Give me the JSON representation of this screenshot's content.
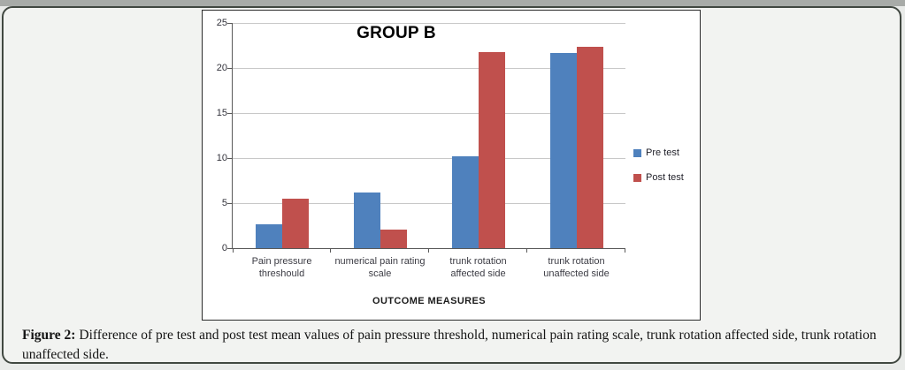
{
  "page": {
    "background": "#f2f3f1",
    "border_color": "#414841",
    "top_strip_color": "#a8aba8"
  },
  "caption": {
    "label": "Figure 2:",
    "text": "Difference of pre test and post test mean values of pain pressure threshold, numerical pain rating scale, trunk rotation affected side, trunk rotation unaffected side."
  },
  "chart_data": {
    "type": "bar",
    "title": "GROUP B",
    "xlabel": "OUTCOME MEASURES",
    "ylabel": "",
    "categories": [
      "Pain pressure threshould",
      "numerical pain rating scale",
      "trunk rotation affected side",
      "trunk rotation unaffected side"
    ],
    "category_lines": [
      [
        "Pain pressure",
        "threshould"
      ],
      [
        "numerical pain rating",
        "scale"
      ],
      [
        "trunk rotation",
        "affected side"
      ],
      [
        "trunk rotation",
        "unaffected side"
      ]
    ],
    "series": [
      {
        "name": "Pre test",
        "color": "#4f81bd",
        "values": [
          2.6,
          6.2,
          10.2,
          21.7
        ]
      },
      {
        "name": "Post test",
        "color": "#c0504d",
        "values": [
          5.5,
          2.1,
          21.8,
          22.4
        ]
      }
    ],
    "ylim": [
      0,
      25
    ],
    "yticks": [
      0,
      5,
      10,
      15,
      20,
      25
    ],
    "grid": true,
    "legend_position": "right",
    "grid_color": "#c8c8c8",
    "axis_color": "#595959"
  }
}
